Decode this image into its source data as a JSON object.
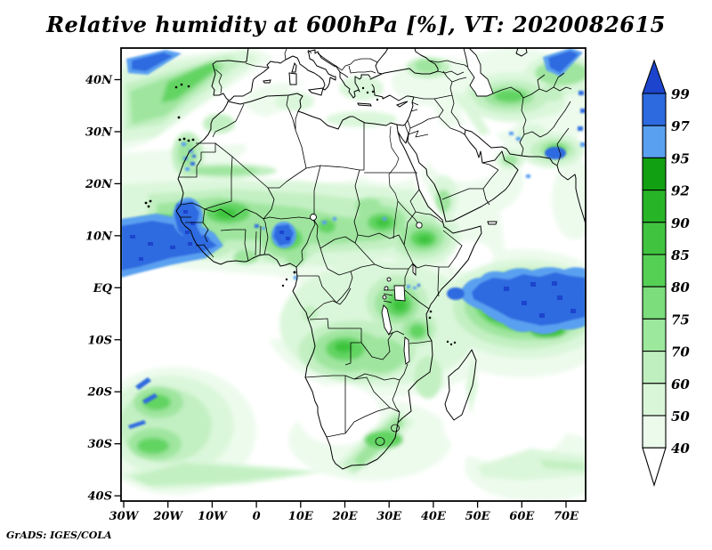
{
  "title": "Relative humidity at 600hPa [%], VT: 2020082615",
  "credit": "GrADS: IGES/COLA",
  "axes": {
    "lat_ticks": [
      "40N",
      "30N",
      "20N",
      "10N",
      "EQ",
      "10S",
      "20S",
      "30S",
      "40S"
    ],
    "lon_ticks": [
      "30W",
      "20W",
      "10W",
      "0",
      "10E",
      "20E",
      "30E",
      "40E",
      "50E",
      "60E",
      "70E"
    ]
  },
  "colorbar": {
    "labels": [
      "99",
      "97",
      "95",
      "92",
      "90",
      "85",
      "80",
      "75",
      "70",
      "60",
      "50",
      "40"
    ],
    "over_color": "#1c44cc",
    "segment_colors": [
      "#2d6ae0",
      "#5aa0f0",
      "#11a011",
      "#27b527",
      "#40c440",
      "#55d055",
      "#7bdd7b",
      "#9ce89c",
      "#bfefbf",
      "#d9f6d9",
      "#ebfaeb"
    ],
    "under_color": "#ffffff"
  },
  "chart_data": {
    "type": "heatmap",
    "title": "Relative humidity at 600hPa [%], VT: 2020082615",
    "variable": "Relative humidity",
    "level_hPa": 600,
    "units": "%",
    "valid_time": "2020082615",
    "lon_range": [
      -30,
      75
    ],
    "lat_range": [
      -41,
      46
    ],
    "x_tick_labels": [
      "30W",
      "20W",
      "10W",
      "0",
      "10E",
      "20E",
      "30E",
      "40E",
      "50E",
      "60E",
      "70E"
    ],
    "y_tick_labels": [
      "40N",
      "30N",
      "20N",
      "10N",
      "EQ",
      "10S",
      "20S",
      "30S",
      "40S"
    ],
    "contour_levels": [
      40,
      50,
      60,
      70,
      75,
      80,
      85,
      90,
      92,
      95,
      97,
      99
    ],
    "palette_low_to_high": [
      "#ffffff",
      "#ebfaeb",
      "#d9f6d9",
      "#bfefbf",
      "#9ce89c",
      "#7bdd7b",
      "#55d055",
      "#40c440",
      "#27b527",
      "#11a011",
      "#5aa0f0",
      "#2d6ae0",
      "#1c44cc"
    ],
    "legend_position": "right vertical colorbar with over/under arrows",
    "grid": false,
    "features": [
      {
        "region": "tropical Atlantic band 3N-11N west of 15W",
        "humidity": "95-99+"
      },
      {
        "region": "Senegal / Guinea coast blob",
        "humidity": "95-99"
      },
      {
        "region": "Western Sahara coast speckle 18N-25N",
        "humidity": "80-97"
      },
      {
        "region": "Sahel band 8N-18N (Mali, Niger, Chad, Sudan)",
        "humidity": "60-92"
      },
      {
        "region": "Nigeria-Cameroon border ~10N blob",
        "humidity": "95-99"
      },
      {
        "region": "Ethiopian highlands and East African lakes",
        "humidity": "70-92"
      },
      {
        "region": "Sahara, Egypt, interior Arabia, central Iran, Kalahari, Gulf of Guinea",
        "humidity": "<40"
      },
      {
        "region": "western Indian Ocean 3N-9S, 48E-75E blob",
        "humidity": "95-99+"
      },
      {
        "region": "Angola-Zambia-Tanzania belt",
        "humidity": "60-85"
      },
      {
        "region": "South Africa east coast streak",
        "humidity": "60-80"
      },
      {
        "region": "NE Atlantic diagonal streak toward Iberia with embedded 97-99 sliver",
        "humidity": "60-99"
      },
      {
        "region": "NE Iran / Afghanistan / Tajikistan patches",
        "humidity": "70-99"
      },
      {
        "region": "south Atlantic mid-latitude swirls 20S-35S with blue slivers",
        "humidity": "50-97"
      }
    ]
  }
}
